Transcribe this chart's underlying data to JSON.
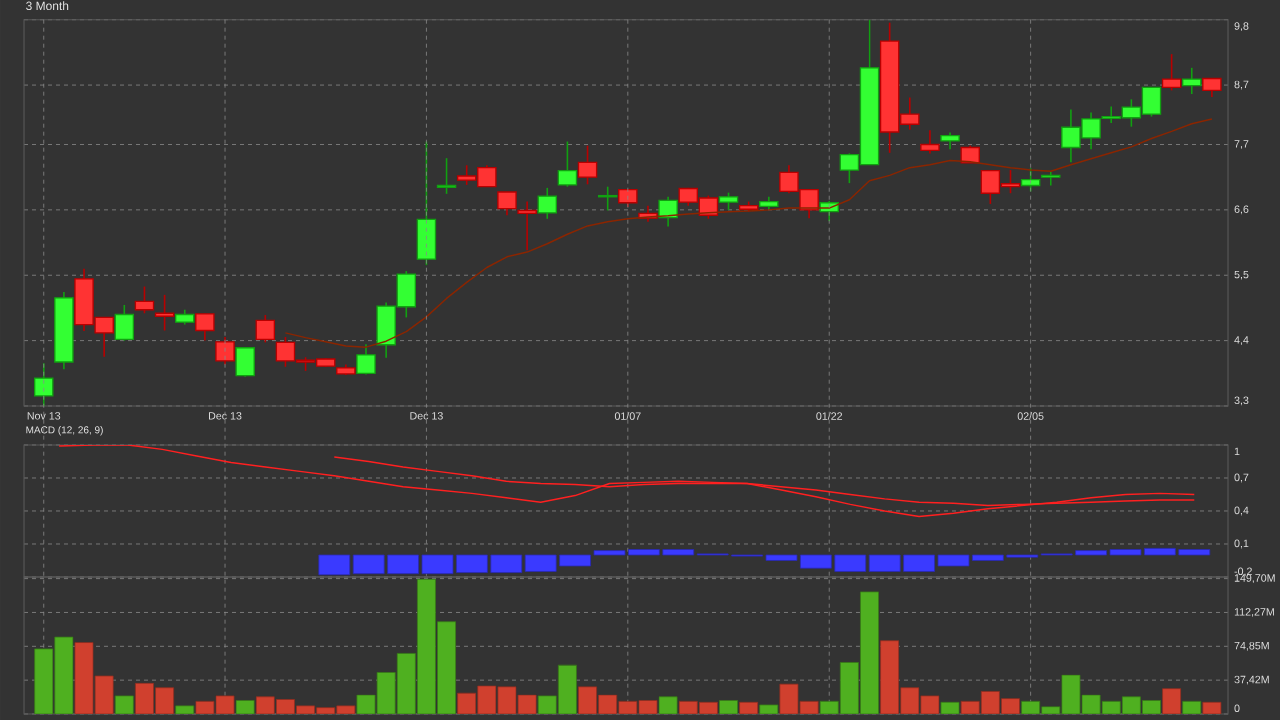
{
  "chart_data": [
    {
      "type": "candlestick",
      "title": "3 Month",
      "categories": [
        "Nov 13",
        null,
        null,
        null,
        null,
        null,
        null,
        null,
        null,
        "Dec 13",
        null,
        null,
        null,
        null,
        null,
        null,
        null,
        null,
        null,
        "Dec 13",
        null,
        null,
        null,
        null,
        null,
        null,
        null,
        null,
        null,
        "01/07",
        null,
        null,
        null,
        null,
        null,
        null,
        null,
        null,
        null,
        "01/22",
        null,
        null,
        null,
        null,
        null,
        null,
        null,
        null,
        null,
        "02/05",
        null,
        null,
        null,
        null,
        null,
        null,
        null,
        null,
        null
      ],
      "ohlc": [
        [
          3.47,
          4.02,
          3.3,
          3.77
        ],
        [
          4.04,
          5.22,
          3.92,
          5.12
        ],
        [
          5.44,
          5.61,
          4.56,
          4.67
        ],
        [
          4.79,
          4.79,
          4.13,
          4.53
        ],
        [
          4.42,
          5.0,
          4.4,
          4.84
        ],
        [
          5.06,
          5.31,
          4.86,
          4.92
        ],
        [
          4.86,
          5.17,
          4.57,
          4.81
        ],
        [
          4.71,
          4.92,
          4.67,
          4.84
        ],
        [
          4.85,
          4.85,
          4.4,
          4.57
        ],
        [
          4.38,
          4.46,
          4.0,
          4.06
        ],
        [
          3.81,
          4.28,
          3.79,
          4.28
        ],
        [
          4.74,
          4.83,
          4.37,
          4.42
        ],
        [
          4.37,
          4.46,
          3.96,
          4.06
        ],
        [
          4.07,
          4.12,
          3.89,
          4.04
        ],
        [
          4.09,
          4.1,
          3.96,
          3.97
        ],
        [
          3.94,
          4.0,
          3.82,
          3.84
        ],
        [
          3.85,
          4.34,
          3.83,
          4.16
        ],
        [
          4.33,
          5.04,
          4.11,
          4.98
        ],
        [
          4.97,
          5.57,
          4.79,
          5.52
        ],
        [
          5.77,
          7.75,
          5.67,
          6.44
        ],
        [
          6.98,
          7.47,
          6.87,
          7.01
        ],
        [
          7.17,
          7.35,
          7.02,
          7.1
        ],
        [
          7.31,
          7.35,
          6.99,
          6.99
        ],
        [
          6.9,
          6.9,
          6.51,
          6.62
        ],
        [
          6.59,
          6.74,
          5.92,
          6.54
        ],
        [
          6.55,
          6.97,
          6.45,
          6.83
        ],
        [
          7.02,
          7.75,
          6.99,
          7.26
        ],
        [
          7.4,
          7.68,
          7.03,
          7.15
        ],
        [
          6.82,
          6.99,
          6.59,
          6.84
        ],
        [
          6.94,
          6.95,
          6.65,
          6.72
        ],
        [
          6.54,
          6.67,
          6.4,
          6.46
        ],
        [
          6.47,
          6.82,
          6.32,
          6.76
        ],
        [
          6.96,
          6.97,
          6.67,
          6.73
        ],
        [
          6.8,
          6.84,
          6.45,
          6.51
        ],
        [
          6.73,
          6.89,
          6.6,
          6.82
        ],
        [
          6.67,
          6.74,
          6.57,
          6.61
        ],
        [
          6.66,
          6.82,
          6.61,
          6.74
        ],
        [
          7.23,
          7.35,
          6.88,
          6.91
        ],
        [
          6.94,
          6.94,
          6.46,
          6.6
        ],
        [
          6.57,
          6.75,
          6.41,
          6.72
        ],
        [
          7.27,
          7.55,
          7.05,
          7.53
        ],
        [
          7.36,
          9.8,
          7.36,
          8.99
        ],
        [
          9.44,
          9.75,
          7.56,
          7.91
        ],
        [
          8.21,
          8.49,
          7.95,
          8.04
        ],
        [
          7.7,
          7.94,
          7.55,
          7.6
        ],
        [
          7.76,
          7.9,
          7.62,
          7.85
        ],
        [
          7.65,
          7.68,
          7.39,
          7.39
        ],
        [
          7.26,
          7.26,
          6.7,
          6.88
        ],
        [
          7.04,
          7.27,
          6.88,
          6.99
        ],
        [
          7.01,
          7.3,
          6.91,
          7.11
        ],
        [
          7.15,
          7.24,
          7.01,
          7.18
        ],
        [
          7.65,
          8.29,
          7.4,
          7.99
        ],
        [
          7.81,
          8.24,
          7.62,
          8.13
        ],
        [
          8.14,
          8.34,
          8.06,
          8.17
        ],
        [
          8.15,
          8.46,
          8.0,
          8.33
        ],
        [
          8.21,
          8.66,
          8.17,
          8.66
        ],
        [
          8.8,
          9.22,
          8.61,
          8.66
        ],
        [
          8.69,
          8.99,
          8.55,
          8.8
        ],
        [
          8.81,
          8.81,
          8.5,
          8.61
        ]
      ],
      "series": [
        {
          "type": "line",
          "color": "#8b2500",
          "values": [
            null,
            null,
            null,
            null,
            null,
            null,
            null,
            null,
            null,
            null,
            null,
            null,
            4.53,
            4.45,
            4.38,
            4.31,
            4.29,
            4.39,
            4.55,
            4.8,
            5.11,
            5.38,
            5.63,
            5.81,
            5.89,
            6.03,
            6.19,
            6.33,
            6.4,
            6.45,
            6.48,
            6.5,
            6.53,
            6.55,
            6.57,
            6.58,
            6.6,
            6.63,
            6.63,
            6.63,
            6.77,
            7.09,
            7.18,
            7.31,
            7.36,
            7.43,
            7.41,
            7.36,
            7.31,
            7.27,
            7.25,
            7.36,
            7.46,
            7.56,
            7.66,
            7.8,
            7.92,
            8.05,
            8.13
          ]
        }
      ],
      "ylim": [
        3.3,
        9.8
      ],
      "yticks": [
        {
          "value": 3.3,
          "label": "3,3"
        },
        {
          "value": 4.4,
          "label": "4,4"
        },
        {
          "value": 5.5,
          "label": "5,5"
        },
        {
          "value": 6.6,
          "label": "6,6"
        },
        {
          "value": 7.7,
          "label": "7,7"
        },
        {
          "value": 8.7,
          "label": "8,7"
        },
        {
          "value": 9.8,
          "label": "9,8"
        }
      ],
      "grid": true
    },
    {
      "type": "line",
      "title": "MACD (12, 26, 9)",
      "categories": [
        null,
        null,
        null,
        null,
        null,
        null,
        null,
        null,
        null,
        null,
        null,
        null,
        null,
        null,
        null,
        null,
        null,
        null,
        null,
        null,
        null,
        null,
        null,
        null,
        null,
        null,
        null,
        null,
        null,
        null,
        null,
        null,
        null,
        null
      ],
      "series": [
        {
          "type": "line",
          "color": "#ff2020",
          "values": [
            0.99,
            1.0,
            1.0,
            0.96,
            0.9,
            0.84,
            0.8,
            0.76,
            0.72,
            0.67,
            0.62,
            0.59,
            0.56,
            0.52,
            0.48,
            0.54,
            0.65,
            0.66,
            0.67,
            0.66,
            0.65,
            0.59,
            0.53,
            0.46,
            0.4,
            0.35,
            0.38,
            0.42,
            0.45,
            0.48,
            0.52,
            0.55,
            0.56,
            0.55
          ]
        },
        {
          "type": "line",
          "color": "#ff2020",
          "values": [
            null,
            null,
            null,
            null,
            null,
            null,
            null,
            null,
            0.89,
            0.85,
            0.8,
            0.76,
            0.72,
            0.67,
            0.65,
            0.64,
            0.62,
            0.64,
            0.65,
            0.65,
            0.65,
            0.62,
            0.59,
            0.55,
            0.51,
            0.48,
            0.47,
            0.45,
            0.46,
            0.47,
            0.48,
            0.49,
            0.5,
            0.5
          ]
        },
        {
          "type": "bar",
          "color": "#3a3aff",
          "values": [
            null,
            null,
            null,
            null,
            null,
            null,
            null,
            null,
            -0.18,
            -0.17,
            -0.17,
            -0.17,
            -0.16,
            -0.16,
            -0.15,
            -0.1,
            0.04,
            0.05,
            0.05,
            0.01,
            -0.01,
            -0.05,
            -0.12,
            -0.15,
            -0.15,
            -0.15,
            -0.1,
            -0.05,
            -0.02,
            0.01,
            0.04,
            0.05,
            0.06,
            0.05
          ]
        }
      ],
      "ylim": [
        -0.2,
        1.0
      ],
      "yticks": [
        {
          "value": -0.2,
          "label": "-0,2"
        },
        {
          "value": 0.1,
          "label": "0,1"
        },
        {
          "value": 0.4,
          "label": "0,4"
        },
        {
          "value": 0.7,
          "label": "0,7"
        },
        1
      ],
      "grid": "y",
      "tick_labels": "y"
    },
    {
      "type": "bar",
      "categories": [
        null,
        null,
        null,
        null,
        null,
        null,
        null,
        null,
        null,
        null,
        null,
        null,
        null,
        null,
        null,
        null,
        null,
        null,
        null,
        null,
        null,
        null,
        null,
        null,
        null,
        null,
        null,
        null,
        null,
        null,
        null,
        null,
        null,
        null,
        null,
        null,
        null,
        null,
        null,
        null,
        null,
        null,
        null,
        null,
        null,
        null,
        null,
        null,
        null,
        null,
        null,
        null,
        null,
        null,
        null,
        null,
        null,
        null,
        null
      ],
      "values": [
        72,
        85,
        79,
        42,
        20,
        34,
        29,
        9,
        14,
        20,
        15,
        19,
        16,
        9,
        7,
        9,
        21,
        46,
        67,
        149,
        102,
        23,
        31,
        30,
        21,
        20,
        54,
        30,
        21,
        14,
        15,
        19,
        14,
        13,
        15,
        13,
        10,
        33,
        14,
        14,
        57,
        135,
        81,
        29,
        20,
        13,
        14,
        25,
        17,
        14,
        8,
        43,
        21,
        14,
        19,
        15,
        28,
        14,
        13
      ],
      "colors": [
        "#4fb020",
        "#4fb020",
        "#d0402e",
        "#d0402e",
        "#4fb020",
        "#d0402e",
        "#d0402e",
        "#4fb020",
        "#d0402e",
        "#d0402e",
        "#4fb020",
        "#d0402e",
        "#d0402e",
        "#d0402e",
        "#d0402e",
        "#d0402e",
        "#4fb020",
        "#4fb020",
        "#4fb020",
        "#4fb020",
        "#4fb020",
        "#d0402e",
        "#d0402e",
        "#d0402e",
        "#d0402e",
        "#4fb020",
        "#4fb020",
        "#d0402e",
        "#d0402e",
        "#d0402e",
        "#d0402e",
        "#4fb020",
        "#d0402e",
        "#d0402e",
        "#4fb020",
        "#d0402e",
        "#4fb020",
        "#d0402e",
        "#d0402e",
        "#4fb020",
        "#4fb020",
        "#4fb020",
        "#d0402e",
        "#d0402e",
        "#d0402e",
        "#4fb020",
        "#d0402e",
        "#d0402e",
        "#d0402e",
        "#4fb020",
        "#4fb020",
        "#4fb020",
        "#4fb020",
        "#4fb020",
        "#4fb020",
        "#4fb020",
        "#d0402e",
        "#4fb020",
        "#d0402e"
      ],
      "ylim": [
        0,
        151.5
      ],
      "yticks": [
        0,
        {
          "value": 37.42,
          "label": "37,42M"
        },
        {
          "value": 74.85,
          "label": "74,85M"
        },
        {
          "value": 112.27,
          "label": "112,27M"
        },
        {
          "value": 149.7,
          "label": "149,70M"
        }
      ],
      "grid": "y",
      "tick_labels": "y"
    }
  ]
}
